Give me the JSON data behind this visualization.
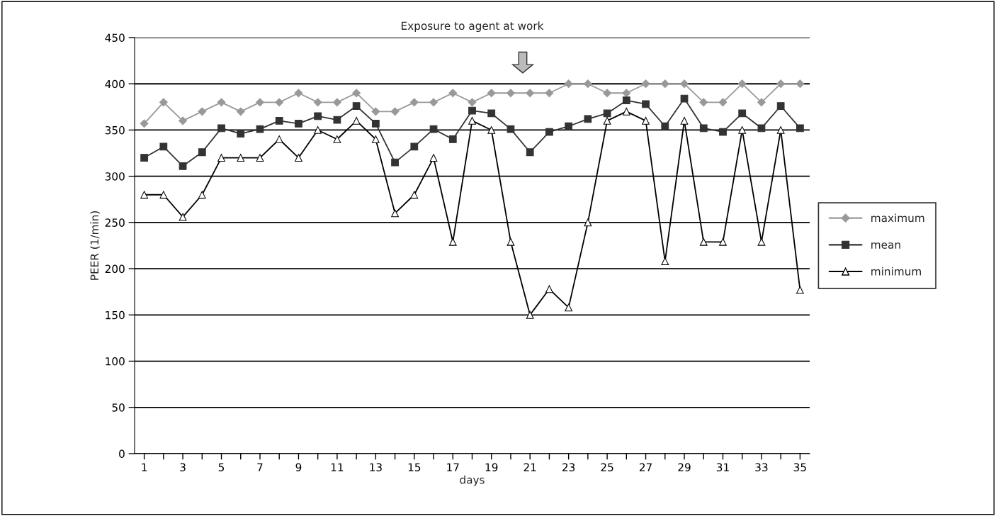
{
  "chart_data": {
    "type": "line",
    "title": "Exposure to agent at work",
    "xlabel": "days",
    "ylabel": "PEER (1/min)",
    "categories": [
      "1",
      null,
      "3",
      null,
      "5",
      null,
      "7",
      null,
      "9",
      null,
      "11",
      null,
      "13",
      null,
      "15",
      null,
      "17",
      null,
      "19",
      null,
      "21",
      null,
      "23",
      null,
      "25",
      null,
      "27",
      null,
      "29",
      null,
      "31",
      null,
      "33",
      null,
      "35"
    ],
    "series": [
      {
        "name": "maximum",
        "color": "#999999",
        "marker": "diamond",
        "values": [
          357,
          380,
          360,
          370,
          380,
          370,
          380,
          380,
          390,
          380,
          380,
          390,
          370,
          370,
          380,
          380,
          390,
          380,
          390,
          390,
          390,
          390,
          400,
          400,
          390,
          390,
          400,
          400,
          400,
          380,
          380,
          400,
          380,
          400,
          400
        ]
      },
      {
        "name": "mean",
        "color": "#333333",
        "marker": "square",
        "values": [
          320,
          332,
          311,
          326,
          352,
          346,
          351,
          360,
          357,
          365,
          361,
          376,
          357,
          315,
          332,
          351,
          340,
          371,
          368,
          351,
          326,
          348,
          354,
          362,
          368,
          382,
          378,
          354,
          384,
          352,
          348,
          368,
          352,
          376,
          352
        ]
      },
      {
        "name": "minimum",
        "color": "#000000",
        "marker": "triangle",
        "values": [
          280,
          280,
          256,
          280,
          320,
          320,
          320,
          340,
          320,
          350,
          340,
          360,
          340,
          260,
          280,
          320,
          229,
          360,
          350,
          229,
          150,
          178,
          158,
          250,
          360,
          370,
          360,
          208,
          360,
          229,
          229,
          350,
          229,
          350,
          177
        ]
      }
    ],
    "ylim": [
      0,
      450
    ],
    "yticks": [
      0,
      50,
      100,
      150,
      200,
      250,
      300,
      350,
      400,
      450
    ],
    "grid": "y",
    "legend": "right"
  }
}
